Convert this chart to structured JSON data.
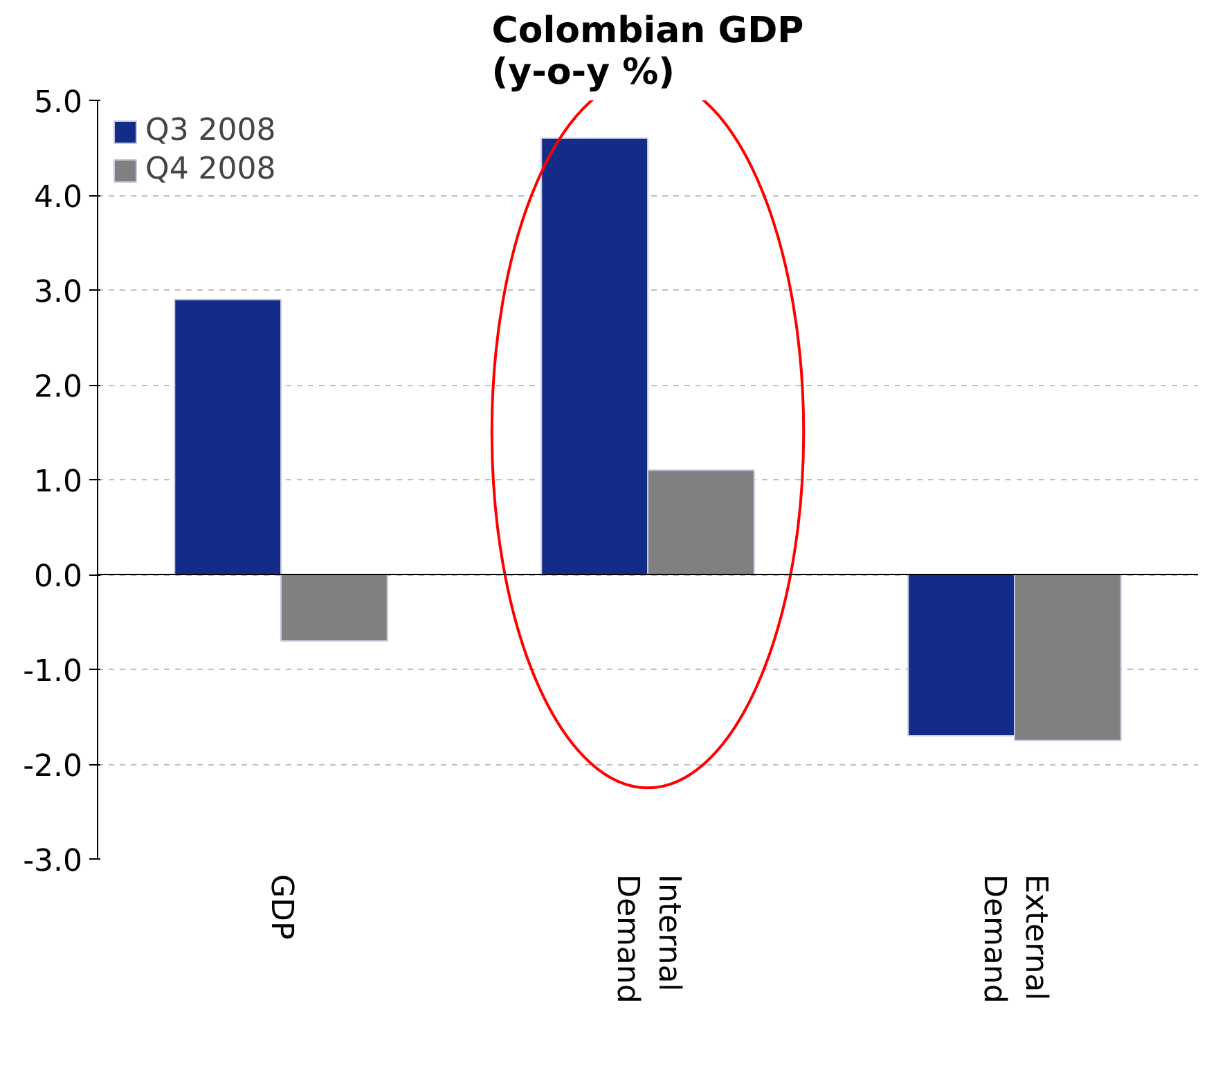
{
  "chart_data": {
    "type": "bar",
    "title": "Colombian GDP\n(y-o-y %)",
    "categories": [
      "GDP",
      "Internal Demand",
      "External Demand"
    ],
    "series": [
      {
        "name": "Q3 2008",
        "color": "#122c87",
        "values": [
          2.9,
          4.6,
          -1.7
        ]
      },
      {
        "name": "Q4 2008",
        "color": "#808080",
        "values": [
          -0.7,
          1.1,
          -1.75
        ]
      }
    ],
    "ylim": [
      -3.0,
      5.0
    ],
    "yticks": [
      {
        "value": -3,
        "label": "-3.0"
      },
      {
        "value": -2,
        "label": "-2.0"
      },
      {
        "value": -1,
        "label": "-1.0"
      },
      {
        "value": 0,
        "label": "0.0"
      },
      {
        "value": 1,
        "label": "1.0"
      },
      {
        "value": 2,
        "label": "2.0"
      },
      {
        "value": 3,
        "label": "3.0"
      },
      {
        "value": 4,
        "label": "4.0"
      },
      {
        "value": 5,
        "label": "5.0"
      }
    ],
    "grid": "y",
    "legend": "top left"
  }
}
